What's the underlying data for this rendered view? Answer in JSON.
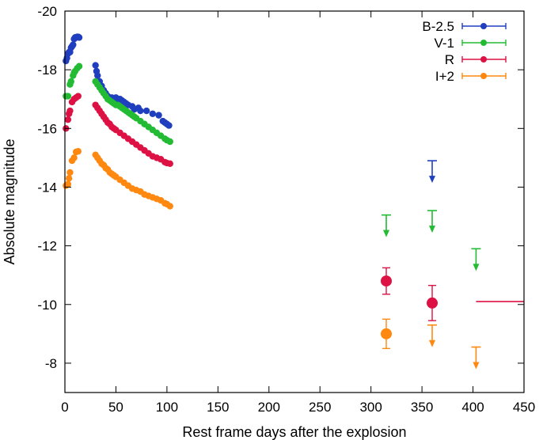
{
  "chart_data": {
    "type": "scatter",
    "title": "",
    "xlabel": "Rest frame days after the explosion",
    "ylabel": "Absolute magnitude",
    "xlim": [
      0,
      450
    ],
    "ylim": [
      -7,
      -20
    ],
    "x_ticks": [
      0,
      50,
      100,
      150,
      200,
      250,
      300,
      350,
      400,
      450
    ],
    "y_ticks": [
      -8,
      -10,
      -12,
      -14,
      -16,
      -18,
      -20
    ],
    "y_reversed": true,
    "grid": false,
    "legend_position": "top-right",
    "series": [
      {
        "name": "B-2.5",
        "color": "#1f3fbf",
        "points": [
          [
            1,
            -18.3
          ],
          [
            2,
            -18.4
          ],
          [
            3,
            -18.55
          ],
          [
            4,
            -18.6
          ],
          [
            5,
            -18.6
          ],
          [
            6,
            -18.75
          ],
          [
            7,
            -18.8
          ],
          [
            8,
            -18.85
          ],
          [
            9,
            -19.05
          ],
          [
            10,
            -19.1
          ],
          [
            11,
            -19.1
          ],
          [
            12,
            -19.12
          ],
          [
            13,
            -19.12
          ],
          [
            14,
            -19.1
          ],
          [
            30,
            -18.15
          ],
          [
            31,
            -17.95
          ],
          [
            32,
            -17.8
          ],
          [
            34,
            -17.6
          ],
          [
            36,
            -17.45
          ],
          [
            38,
            -17.3
          ],
          [
            40,
            -17.2
          ],
          [
            42,
            -17.1
          ],
          [
            46,
            -17.05
          ],
          [
            48,
            -17.0
          ],
          [
            50,
            -17.05
          ],
          [
            52,
            -17.0
          ],
          [
            54,
            -17.0
          ],
          [
            56,
            -16.95
          ],
          [
            58,
            -16.9
          ],
          [
            60,
            -16.85
          ],
          [
            62,
            -16.8
          ],
          [
            66,
            -16.75
          ],
          [
            68,
            -16.65
          ],
          [
            72,
            -16.7
          ],
          [
            74,
            -16.6
          ],
          [
            80,
            -16.6
          ],
          [
            86,
            -16.5
          ],
          [
            92,
            -16.45
          ],
          [
            96,
            -16.25
          ],
          [
            98,
            -16.2
          ],
          [
            100,
            -16.15
          ],
          [
            102,
            -16.1
          ]
        ],
        "upper_limits": [
          [
            360,
            -14.9
          ]
        ]
      },
      {
        "name": "V-1",
        "color": "#22bb33",
        "points": [
          [
            1,
            -17.1
          ],
          [
            3,
            -17.1
          ],
          [
            5,
            -17.5
          ],
          [
            6,
            -17.6
          ],
          [
            8,
            -17.8
          ],
          [
            9,
            -17.9
          ],
          [
            10,
            -17.95
          ],
          [
            12,
            -18.05
          ],
          [
            14,
            -18.12
          ],
          [
            30,
            -17.6
          ],
          [
            32,
            -17.5
          ],
          [
            34,
            -17.4
          ],
          [
            36,
            -17.3
          ],
          [
            38,
            -17.2
          ],
          [
            40,
            -17.1
          ],
          [
            42,
            -17.0
          ],
          [
            44,
            -16.95
          ],
          [
            46,
            -16.9
          ],
          [
            48,
            -16.85
          ],
          [
            50,
            -16.8
          ],
          [
            52,
            -16.8
          ],
          [
            54,
            -16.75
          ],
          [
            56,
            -16.7
          ],
          [
            58,
            -16.65
          ],
          [
            60,
            -16.6
          ],
          [
            62,
            -16.55
          ],
          [
            64,
            -16.5
          ],
          [
            66,
            -16.45
          ],
          [
            68,
            -16.4
          ],
          [
            70,
            -16.35
          ],
          [
            74,
            -16.25
          ],
          [
            78,
            -16.15
          ],
          [
            82,
            -16.05
          ],
          [
            86,
            -15.95
          ],
          [
            90,
            -15.85
          ],
          [
            94,
            -15.75
          ],
          [
            98,
            -15.65
          ],
          [
            100,
            -15.6
          ],
          [
            103,
            -15.55
          ]
        ],
        "upper_limits": [
          [
            315,
            -13.05
          ],
          [
            360,
            -13.2
          ],
          [
            403,
            -11.9
          ]
        ]
      },
      {
        "name": "R",
        "color": "#dd1144",
        "points": [
          [
            1,
            -16.0
          ],
          [
            3,
            -16.3
          ],
          [
            4,
            -16.5
          ],
          [
            5,
            -16.6
          ],
          [
            7,
            -16.9
          ],
          [
            9,
            -17.0
          ],
          [
            11,
            -17.05
          ],
          [
            13,
            -17.1
          ],
          [
            30,
            -16.8
          ],
          [
            32,
            -16.7
          ],
          [
            34,
            -16.6
          ],
          [
            36,
            -16.5
          ],
          [
            38,
            -16.4
          ],
          [
            40,
            -16.3
          ],
          [
            42,
            -16.2
          ],
          [
            44,
            -16.15
          ],
          [
            46,
            -16.05
          ],
          [
            48,
            -16.0
          ],
          [
            50,
            -15.95
          ],
          [
            54,
            -15.85
          ],
          [
            58,
            -15.75
          ],
          [
            62,
            -15.65
          ],
          [
            66,
            -15.55
          ],
          [
            70,
            -15.45
          ],
          [
            74,
            -15.35
          ],
          [
            78,
            -15.25
          ],
          [
            82,
            -15.15
          ],
          [
            86,
            -15.05
          ],
          [
            90,
            -15.0
          ],
          [
            94,
            -14.95
          ],
          [
            98,
            -14.85
          ],
          [
            100,
            -14.82
          ],
          [
            103,
            -14.8
          ]
        ],
        "points_with_errors": [
          [
            315,
            -10.8,
            0.45
          ],
          [
            360,
            -10.05,
            0.6
          ]
        ],
        "horizontal_limit": {
          "x_from": 403,
          "x_to": 450,
          "y": -10.1
        }
      },
      {
        "name": "I+2",
        "color": "#ff8811",
        "points": [
          [
            1,
            -14.05
          ],
          [
            3,
            -14.1
          ],
          [
            4,
            -14.3
          ],
          [
            5,
            -14.5
          ],
          [
            7,
            -14.9
          ],
          [
            9,
            -15.0
          ],
          [
            11,
            -15.2
          ],
          [
            13,
            -15.22
          ],
          [
            30,
            -15.1
          ],
          [
            32,
            -15.0
          ],
          [
            34,
            -14.9
          ],
          [
            36,
            -14.8
          ],
          [
            38,
            -14.75
          ],
          [
            40,
            -14.65
          ],
          [
            42,
            -14.6
          ],
          [
            44,
            -14.5
          ],
          [
            46,
            -14.45
          ],
          [
            48,
            -14.4
          ],
          [
            50,
            -14.35
          ],
          [
            54,
            -14.25
          ],
          [
            58,
            -14.15
          ],
          [
            62,
            -14.05
          ],
          [
            66,
            -13.95
          ],
          [
            70,
            -13.9
          ],
          [
            74,
            -13.85
          ],
          [
            78,
            -13.75
          ],
          [
            82,
            -13.7
          ],
          [
            86,
            -13.65
          ],
          [
            90,
            -13.6
          ],
          [
            94,
            -13.55
          ],
          [
            98,
            -13.45
          ],
          [
            100,
            -13.42
          ],
          [
            103,
            -13.35
          ]
        ],
        "points_with_errors": [
          [
            315,
            -9.0,
            0.5
          ]
        ],
        "upper_limits": [
          [
            360,
            -9.3
          ],
          [
            403,
            -8.55
          ]
        ]
      }
    ]
  }
}
